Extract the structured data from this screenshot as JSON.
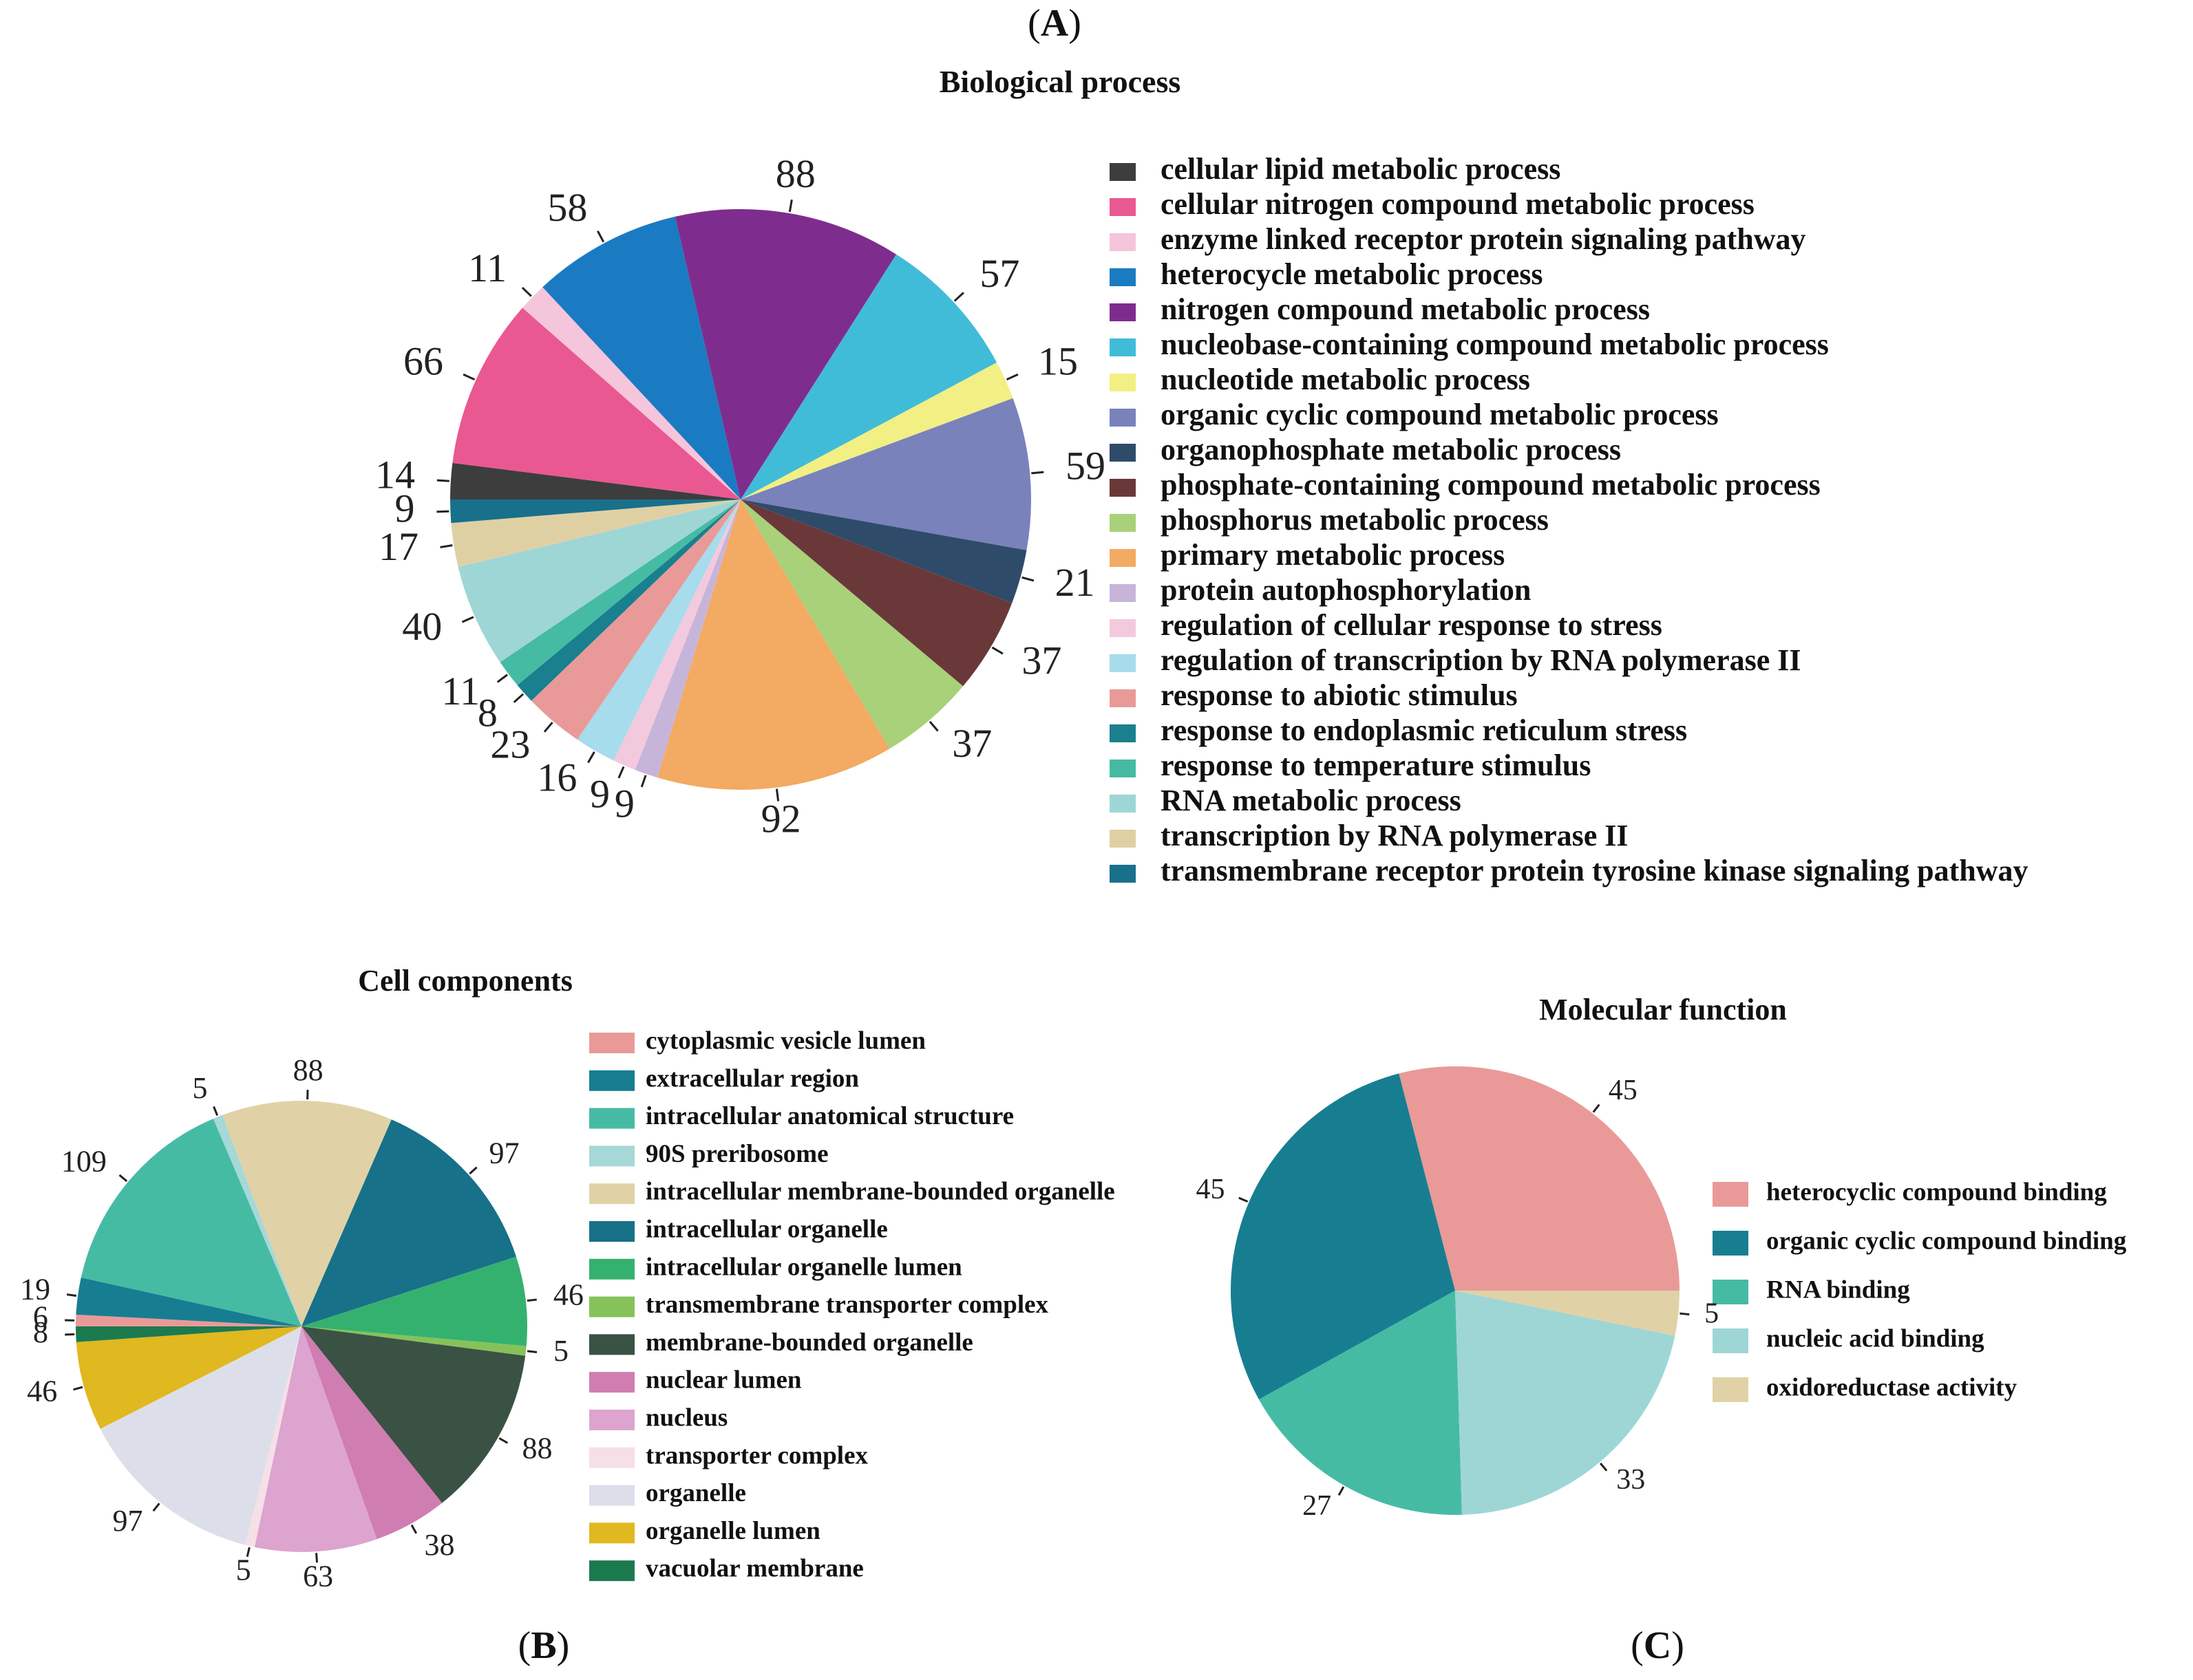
{
  "panel_labels": [
    {
      "open": "(",
      "letter": "A",
      "close": ")"
    },
    {
      "open": "(",
      "letter": "B",
      "close": ")"
    },
    {
      "open": "(",
      "letter": "C",
      "close": ")"
    }
  ],
  "chart_data": [
    {
      "type": "pie",
      "title": "Biological process",
      "slices": [
        {
          "label": "cellular lipid metabolic process",
          "value": 14,
          "color": "#3d3d3d"
        },
        {
          "label": "cellular nitrogen compound metabolic process",
          "value": 66,
          "color": "#e95891"
        },
        {
          "label": "enzyme linked receptor protein signaling pathway",
          "value": 11,
          "color": "#f5c5dc"
        },
        {
          "label": "heterocycle metabolic process",
          "value": 58,
          "color": "#1b7bc2"
        },
        {
          "label": "nitrogen compound metabolic process",
          "value": 88,
          "color": "#7e2d8f"
        },
        {
          "label": "nucleobase-containing compound metabolic process",
          "value": 57,
          "color": "#41bcd8"
        },
        {
          "label": "nucleotide metabolic process",
          "value": 15,
          "color": "#f2ef84"
        },
        {
          "label": "organic cyclic compound metabolic process",
          "value": 59,
          "color": "#7982bb"
        },
        {
          "label": "organophosphate metabolic process",
          "value": 21,
          "color": "#2f4b6a"
        },
        {
          "label": "phosphate-containing compound metabolic process",
          "value": 37,
          "color": "#6a3838"
        },
        {
          "label": "phosphorus metabolic process",
          "value": 37,
          "color": "#a8d17a"
        },
        {
          "label": "primary metabolic process",
          "value": 92,
          "color": "#f3aa62"
        },
        {
          "label": "protein autophosphorylation",
          "value": 9,
          "color": "#c7b5d9"
        },
        {
          "label": "regulation of cellular response to stress",
          "value": 9,
          "color": "#f3c9de"
        },
        {
          "label": "regulation of transcription by RNA polymerase II",
          "value": 16,
          "color": "#a6dcec"
        },
        {
          "label": "response to abiotic stimulus",
          "value": 23,
          "color": "#e99a98"
        },
        {
          "label": "response to endoplasmic reticulum stress",
          "value": 8,
          "color": "#1a7f8e"
        },
        {
          "label": "response to temperature stimulus",
          "value": 11,
          "color": "#46bba4"
        },
        {
          "label": "RNA metabolic process",
          "value": 40,
          "color": "#9ed6d6"
        },
        {
          "label": "transcription by RNA polymerase II",
          "value": 17,
          "color": "#dfd0a4"
        },
        {
          "label": "transmembrane receptor protein tyrosine kinase signaling pathway",
          "value": 9,
          "color": "#18708a"
        }
      ]
    },
    {
      "type": "pie",
      "title": "Cell components",
      "slices": [
        {
          "label": "cytoplasmic vesicle lumen",
          "value": 6,
          "color": "#e99a98"
        },
        {
          "label": "extracellular region",
          "value": 19,
          "color": "#177e92"
        },
        {
          "label": "intracellular anatomical structure",
          "value": 109,
          "color": "#46bba4"
        },
        {
          "label": "90S preribosome",
          "value": 5,
          "color": "#a6d8d8"
        },
        {
          "label": "intracellular membrane-bounded organelle",
          "value": 88,
          "color": "#e0d2a6"
        },
        {
          "label": "intracellular organelle",
          "value": 97,
          "color": "#177189"
        },
        {
          "label": "intracellular organelle lumen",
          "value": 46,
          "color": "#35b16f"
        },
        {
          "label": "transmembrane transporter complex",
          "value": 5,
          "color": "#86c25a"
        },
        {
          "label": "membrane-bounded organelle",
          "value": 88,
          "color": "#3a5243"
        },
        {
          "label": "nuclear lumen",
          "value": 38,
          "color": "#d07db2"
        },
        {
          "label": "nucleus",
          "value": 63,
          "color": "#dca4cf"
        },
        {
          "label": "transporter complex",
          "value": 5,
          "color": "#f6dfe6"
        },
        {
          "label": "organelle",
          "value": 97,
          "color": "#dcdfea"
        },
        {
          "label": "organelle lumen",
          "value": 46,
          "color": "#e0b81f"
        },
        {
          "label": "vacuolar membrane",
          "value": 8,
          "color": "#1c7a4f"
        }
      ]
    },
    {
      "type": "pie",
      "title": "Molecular function",
      "slices": [
        {
          "label": "heterocyclic compound binding",
          "value": 45,
          "color": "#e99a98"
        },
        {
          "label": "organic cyclic compound binding",
          "value": 45,
          "color": "#177e92"
        },
        {
          "label": "RNA binding",
          "value": 27,
          "color": "#46bba4"
        },
        {
          "label": "nucleic acid binding",
          "value": 33,
          "color": "#9ed6d6"
        },
        {
          "label": "oxidoreductase activity",
          "value": 5,
          "color": "#e0d2a6"
        }
      ]
    }
  ]
}
